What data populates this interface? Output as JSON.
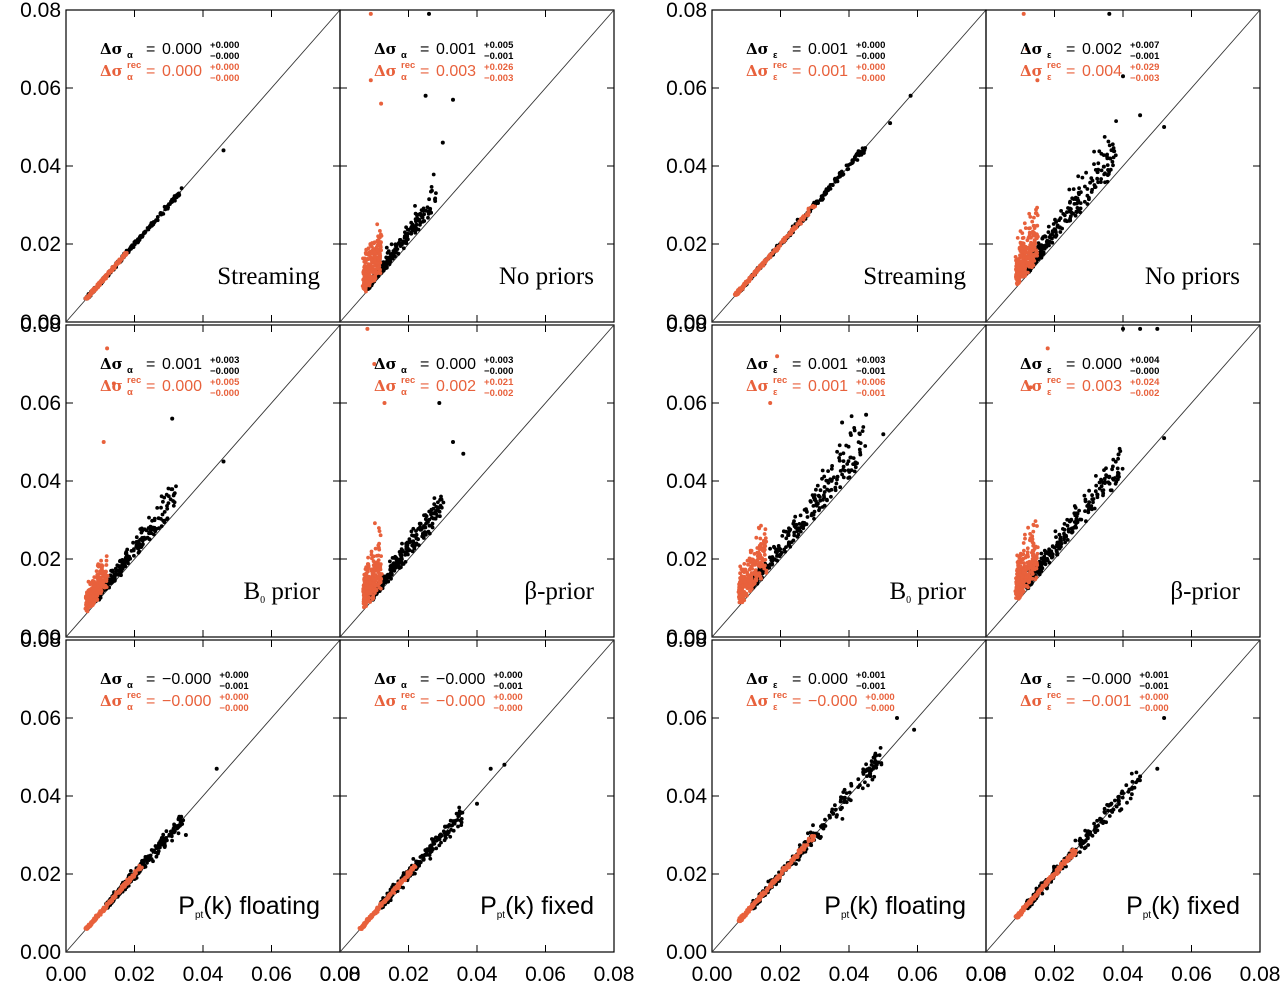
{
  "chart_data": {
    "type": "scatter",
    "colors": {
      "pre": "#000000",
      "rec": "#e8613c",
      "axis": "#000000"
    },
    "axes": {
      "xlim": [
        0,
        0.08
      ],
      "ylim": [
        0,
        0.08
      ],
      "ticks": [
        0.0,
        0.02,
        0.04,
        0.06,
        0.08
      ],
      "tick_labels": [
        "0.00",
        "0.02",
        "0.04",
        "0.06",
        "0.08"
      ],
      "diagonal": true
    },
    "figures": [
      {
        "param_symbol": "α",
        "panels": [
          {
            "label": "Streaming",
            "subscript": "",
            "stats": {
              "delta": "0.000",
              "delta_plus": "+0.000",
              "delta_minus": "−0.000",
              "rec": "0.000",
              "rec_plus": "+0.000",
              "rec_minus": "−0.000"
            },
            "scatter": {
              "pre": {
                "spread": 0.04,
                "slope": 1.01,
                "x_range": [
                  0.006,
                  0.034
                ],
                "outliers": [
                  [
                    0.046,
                    0.044
                  ]
                ]
              },
              "rec": {
                "spread": 0.02,
                "slope": 1.0,
                "x_range": [
                  0.006,
                  0.018
                ],
                "outliers": []
              }
            }
          },
          {
            "label": "No priors",
            "subscript": "",
            "stats": {
              "delta": "0.001",
              "delta_plus": "+0.005",
              "delta_minus": "−0.001",
              "rec": "0.003",
              "rec_plus": "+0.026",
              "rec_minus": "−0.003"
            },
            "scatter": {
              "pre": {
                "spread": 0.55,
                "slope": 1.18,
                "x_range": [
                  0.008,
                  0.028
                ],
                "outliers": [
                  [
                    0.025,
                    0.058
                  ],
                  [
                    0.026,
                    0.079
                  ],
                  [
                    0.03,
                    0.046
                  ],
                  [
                    0.033,
                    0.057
                  ]
                ]
              },
              "rec": {
                "spread": 0.9,
                "slope": 2.0,
                "x_range": [
                  0.007,
                  0.012
                ],
                "outliers": [
                  [
                    0.009,
                    0.079
                  ],
                  [
                    0.009,
                    0.062
                  ],
                  [
                    0.012,
                    0.056
                  ]
                ]
              }
            }
          },
          {
            "label": "B",
            "subscript": "0",
            "label_suffix": " prior",
            "stats": {
              "delta": "0.001",
              "delta_plus": "+0.003",
              "delta_minus": "−0.000",
              "rec": "0.000",
              "rec_plus": "+0.005",
              "rec_minus": "−0.000"
            },
            "scatter": {
              "pre": {
                "spread": 0.5,
                "slope": 1.15,
                "x_range": [
                  0.009,
                  0.032
                ],
                "outliers": [
                  [
                    0.031,
                    0.056
                  ],
                  [
                    0.046,
                    0.045
                  ]
                ]
              },
              "rec": {
                "spread": 0.85,
                "slope": 1.8,
                "x_range": [
                  0.006,
                  0.012
                ],
                "outliers": [
                  [
                    0.012,
                    0.074
                  ],
                  [
                    0.014,
                    0.065
                  ],
                  [
                    0.011,
                    0.05
                  ]
                ]
              }
            }
          },
          {
            "label": "β-prior",
            "subscript": "",
            "stats": {
              "delta": "0.000",
              "delta_plus": "+0.003",
              "delta_minus": "−0.000",
              "rec": "0.002",
              "rec_plus": "+0.021",
              "rec_minus": "−0.002"
            },
            "scatter": {
              "pre": {
                "spread": 0.5,
                "slope": 1.18,
                "x_range": [
                  0.009,
                  0.03
                ],
                "outliers": [
                  [
                    0.029,
                    0.06
                  ],
                  [
                    0.033,
                    0.05
                  ],
                  [
                    0.036,
                    0.047
                  ]
                ]
              },
              "rec": {
                "spread": 0.9,
                "slope": 2.2,
                "x_range": [
                  0.007,
                  0.012
                ],
                "outliers": [
                  [
                    0.008,
                    0.079
                  ],
                  [
                    0.01,
                    0.07
                  ],
                  [
                    0.013,
                    0.06
                  ]
                ]
              }
            }
          },
          {
            "label": "P",
            "subscript": "pt",
            "label_suffix": "(k) floating",
            "stats": {
              "delta": "−0.000",
              "delta_plus": "+0.000",
              "delta_minus": "−0.001",
              "rec": "−0.000",
              "rec_plus": "+0.000",
              "rec_minus": "−0.000"
            },
            "scatter": {
              "pre": {
                "spread": 0.14,
                "slope": 0.95,
                "x_range": [
                  0.012,
                  0.034
                ],
                "outliers": [
                  [
                    0.044,
                    0.047
                  ],
                  [
                    0.035,
                    0.03
                  ]
                ]
              },
              "rec": {
                "spread": 0.05,
                "slope": 1.0,
                "x_range": [
                  0.006,
                  0.022
                ],
                "outliers": []
              }
            }
          },
          {
            "label": "P",
            "subscript": "pt",
            "label_suffix": "(k)  fixed",
            "stats": {
              "delta": "−0.000",
              "delta_plus": "+0.000",
              "delta_minus": "−0.001",
              "rec": "−0.000",
              "rec_plus": "+0.000",
              "rec_minus": "−0.000"
            },
            "scatter": {
              "pre": {
                "spread": 0.14,
                "slope": 0.95,
                "x_range": [
                  0.012,
                  0.036
                ],
                "outliers": [
                  [
                    0.048,
                    0.048
                  ],
                  [
                    0.044,
                    0.047
                  ],
                  [
                    0.04,
                    0.038
                  ]
                ]
              },
              "rec": {
                "spread": 0.05,
                "slope": 1.0,
                "x_range": [
                  0.006,
                  0.022
                ],
                "outliers": []
              }
            }
          }
        ]
      },
      {
        "param_symbol": "ε",
        "panels": [
          {
            "label": "Streaming",
            "subscript": "",
            "stats": {
              "delta": "0.001",
              "delta_plus": "+0.000",
              "delta_minus": "−0.000",
              "rec": "0.001",
              "rec_plus": "+0.000",
              "rec_minus": "−0.000"
            },
            "scatter": {
              "pre": {
                "spread": 0.05,
                "slope": 1.01,
                "x_range": [
                  0.008,
                  0.045
                ],
                "outliers": [
                  [
                    0.058,
                    0.058
                  ],
                  [
                    0.052,
                    0.051
                  ]
                ]
              },
              "rec": {
                "spread": 0.04,
                "slope": 1.0,
                "x_range": [
                  0.007,
                  0.03
                ],
                "outliers": []
              }
            }
          },
          {
            "label": "No priors",
            "subscript": "",
            "stats": {
              "delta": "0.002",
              "delta_plus": "+0.007",
              "delta_minus": "−0.001",
              "rec": "0.004",
              "rec_plus": "+0.029",
              "rec_minus": "−0.003"
            },
            "scatter": {
              "pre": {
                "spread": 0.6,
                "slope": 1.2,
                "x_range": [
                  0.012,
                  0.038
                ],
                "outliers": [
                  [
                    0.036,
                    0.079
                  ],
                  [
                    0.045,
                    0.053
                  ],
                  [
                    0.052,
                    0.05
                  ],
                  [
                    0.04,
                    0.063
                  ]
                ]
              },
              "rec": {
                "spread": 0.9,
                "slope": 1.9,
                "x_range": [
                  0.009,
                  0.015
                ],
                "outliers": [
                  [
                    0.011,
                    0.079
                  ],
                  [
                    0.012,
                    0.07
                  ],
                  [
                    0.015,
                    0.062
                  ]
                ]
              }
            }
          },
          {
            "label": "B",
            "subscript": "0",
            "label_suffix": " prior",
            "stats": {
              "delta": "0.001",
              "delta_plus": "+0.003",
              "delta_minus": "−0.001",
              "rec": "0.001",
              "rec_plus": "+0.006",
              "rec_minus": "−0.001"
            },
            "scatter": {
              "pre": {
                "spread": 0.55,
                "slope": 1.2,
                "x_range": [
                  0.012,
                  0.045
                ],
                "outliers": [
                  [
                    0.045,
                    0.057
                  ],
                  [
                    0.05,
                    0.052
                  ],
                  [
                    0.038,
                    0.055
                  ]
                ]
              },
              "rec": {
                "spread": 0.85,
                "slope": 1.8,
                "x_range": [
                  0.008,
                  0.016
                ],
                "outliers": [
                  [
                    0.019,
                    0.072
                  ],
                  [
                    0.017,
                    0.06
                  ]
                ]
              }
            }
          },
          {
            "label": "β-prior",
            "subscript": "",
            "stats": {
              "delta": "0.000",
              "delta_plus": "+0.004",
              "delta_minus": "−0.000",
              "rec": "0.003",
              "rec_plus": "+0.024",
              "rec_minus": "−0.002"
            },
            "scatter": {
              "pre": {
                "spread": 0.55,
                "slope": 1.18,
                "x_range": [
                  0.012,
                  0.04
                ],
                "outliers": [
                  [
                    0.04,
                    0.079
                  ],
                  [
                    0.045,
                    0.079
                  ],
                  [
                    0.05,
                    0.079
                  ],
                  [
                    0.052,
                    0.051
                  ]
                ]
              },
              "rec": {
                "spread": 0.9,
                "slope": 2.0,
                "x_range": [
                  0.009,
                  0.015
                ],
                "outliers": [
                  [
                    0.018,
                    0.074
                  ],
                  [
                    0.013,
                    0.064
                  ]
                ]
              }
            }
          },
          {
            "label": "P",
            "subscript": "pt",
            "label_suffix": "(k) floating",
            "stats": {
              "delta": "0.000",
              "delta_plus": "+0.001",
              "delta_minus": "−0.001",
              "rec": "−0.000",
              "rec_plus": "+0.000",
              "rec_minus": "−0.000"
            },
            "scatter": {
              "pre": {
                "spread": 0.15,
                "slope": 0.98,
                "x_range": [
                  0.012,
                  0.05
                ],
                "outliers": [
                  [
                    0.054,
                    0.06
                  ],
                  [
                    0.059,
                    0.057
                  ],
                  [
                    0.047,
                    0.047
                  ]
                ]
              },
              "rec": {
                "spread": 0.06,
                "slope": 1.0,
                "x_range": [
                  0.008,
                  0.03
                ],
                "outliers": []
              }
            }
          },
          {
            "label": "P",
            "subscript": "pt",
            "label_suffix": "(k)  fixed",
            "stats": {
              "delta": "−0.000",
              "delta_plus": "+0.001",
              "delta_minus": "−0.001",
              "rec": "−0.001",
              "rec_plus": "+0.000",
              "rec_minus": "−0.000"
            },
            "scatter": {
              "pre": {
                "spread": 0.15,
                "slope": 0.97,
                "x_range": [
                  0.012,
                  0.045
                ],
                "outliers": [
                  [
                    0.052,
                    0.06
                  ],
                  [
                    0.05,
                    0.047
                  ],
                  [
                    0.045,
                    0.045
                  ]
                ]
              },
              "rec": {
                "spread": 0.06,
                "slope": 1.0,
                "x_range": [
                  0.009,
                  0.026
                ],
                "outliers": []
              }
            }
          }
        ]
      }
    ]
  }
}
